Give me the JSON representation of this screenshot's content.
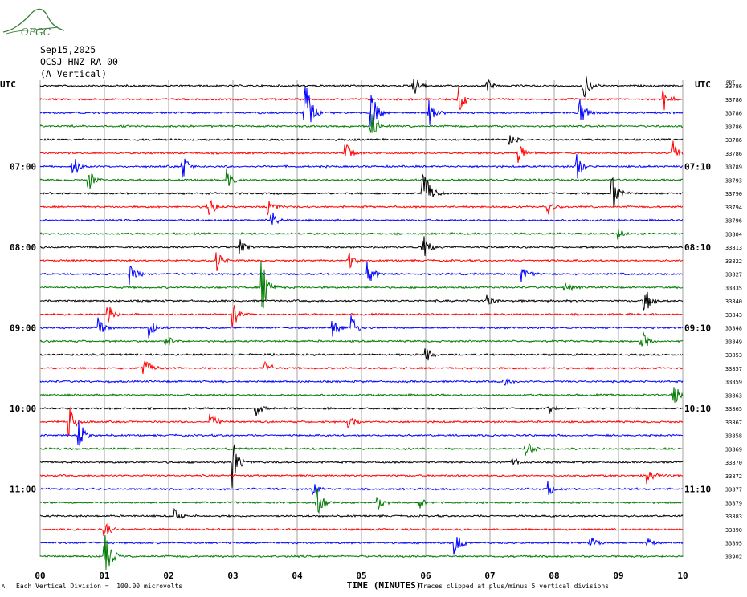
{
  "header": {
    "logo_text": "OFGC",
    "date": "Sep15,2025",
    "station": "OCSJ HNZ RA 00",
    "component": "(A Vertical)"
  },
  "labels": {
    "utc_left": "UTC",
    "utc_right": "UTC",
    "xlabel": "TIME (MINUTES)",
    "right_header": "PDT",
    "scale_note": "Each Vertical Division =  100.00 microvolts",
    "clip_note": "Traces clipped at plus/minus 5 vertical divisions",
    "corner_mark": "A"
  },
  "colors": {
    "trace_cycle": [
      "#000000",
      "#ff0000",
      "#0000ff",
      "#007a00"
    ],
    "grid": "#8c8c8c",
    "logo": "#3a7f3a"
  },
  "chart_data": {
    "type": "line",
    "xlim": [
      0,
      10
    ],
    "x_ticks": [
      "00",
      "01",
      "02",
      "03",
      "04",
      "05",
      "06",
      "07",
      "08",
      "09",
      "10"
    ],
    "left_time_labels": [
      {
        "row": 6,
        "label": "07:00"
      },
      {
        "row": 12,
        "label": "08:00"
      },
      {
        "row": 18,
        "label": "09:00"
      },
      {
        "row": 24,
        "label": "10:00"
      },
      {
        "row": 30,
        "label": "11:00"
      }
    ],
    "right_time_labels": [
      {
        "row": 6,
        "label": "07:10"
      },
      {
        "row": 12,
        "label": "08:10"
      },
      {
        "row": 18,
        "label": "09:10"
      },
      {
        "row": 24,
        "label": "10:10"
      },
      {
        "row": 30,
        "label": "11:10"
      }
    ],
    "right_values": [
      "33786",
      "33786",
      "33786",
      "33786",
      "33786",
      "33786",
      "33789",
      "33793",
      "33790",
      "33794",
      "33796",
      "33804",
      "33813",
      "33822",
      "33827",
      "33835",
      "33840",
      "33843",
      "33848",
      "33849",
      "33853",
      "33857",
      "33859",
      "33863",
      "33865",
      "33867",
      "33858",
      "33869",
      "33870",
      "33872",
      "33877",
      "33879",
      "33883",
      "33890",
      "33895",
      "33902"
    ],
    "events": [
      {
        "row": 0,
        "x": 5.8,
        "amp": 0.8
      },
      {
        "row": 0,
        "x": 8.45,
        "amp": 1.0
      },
      {
        "row": 0,
        "x": 6.95,
        "amp": 0.5
      },
      {
        "row": 1,
        "x": 6.5,
        "amp": 1.1
      },
      {
        "row": 1,
        "x": 9.7,
        "amp": 0.9
      },
      {
        "row": 2,
        "x": 4.1,
        "amp": 3.2
      },
      {
        "row": 2,
        "x": 5.15,
        "amp": 1.4
      },
      {
        "row": 2,
        "x": 6.05,
        "amp": 0.9
      },
      {
        "row": 2,
        "x": 8.4,
        "amp": 0.9
      },
      {
        "row": 3,
        "x": 5.15,
        "amp": 1.0
      },
      {
        "row": 4,
        "x": 7.3,
        "amp": 0.4
      },
      {
        "row": 5,
        "x": 4.75,
        "amp": 0.7
      },
      {
        "row": 5,
        "x": 7.45,
        "amp": 0.7
      },
      {
        "row": 5,
        "x": 9.85,
        "amp": 0.8
      },
      {
        "row": 6,
        "x": 0.5,
        "amp": 0.9
      },
      {
        "row": 6,
        "x": 2.2,
        "amp": 0.9
      },
      {
        "row": 6,
        "x": 8.35,
        "amp": 1.0
      },
      {
        "row": 7,
        "x": 0.75,
        "amp": 0.8
      },
      {
        "row": 7,
        "x": 2.9,
        "amp": 0.7
      },
      {
        "row": 8,
        "x": 5.95,
        "amp": 2.0
      },
      {
        "row": 8,
        "x": 8.9,
        "amp": 1.2
      },
      {
        "row": 9,
        "x": 2.6,
        "amp": 1.0
      },
      {
        "row": 9,
        "x": 3.55,
        "amp": 0.6
      },
      {
        "row": 9,
        "x": 7.9,
        "amp": 0.7
      },
      {
        "row": 10,
        "x": 3.6,
        "amp": 0.6
      },
      {
        "row": 11,
        "x": 9.0,
        "amp": 0.4
      },
      {
        "row": 12,
        "x": 5.95,
        "amp": 1.0
      },
      {
        "row": 12,
        "x": 3.1,
        "amp": 0.6
      },
      {
        "row": 13,
        "x": 2.75,
        "amp": 0.7
      },
      {
        "row": 13,
        "x": 4.8,
        "amp": 0.7
      },
      {
        "row": 14,
        "x": 1.4,
        "amp": 0.7
      },
      {
        "row": 14,
        "x": 5.1,
        "amp": 0.8
      },
      {
        "row": 14,
        "x": 7.5,
        "amp": 0.5
      },
      {
        "row": 15,
        "x": 3.45,
        "amp": 1.7
      },
      {
        "row": 15,
        "x": 8.15,
        "amp": 0.6
      },
      {
        "row": 16,
        "x": 9.4,
        "amp": 1.0
      },
      {
        "row": 16,
        "x": 6.95,
        "amp": 0.4
      },
      {
        "row": 17,
        "x": 1.05,
        "amp": 0.8
      },
      {
        "row": 17,
        "x": 3.0,
        "amp": 0.8
      },
      {
        "row": 18,
        "x": 0.9,
        "amp": 0.7
      },
      {
        "row": 18,
        "x": 1.7,
        "amp": 0.7
      },
      {
        "row": 18,
        "x": 4.55,
        "amp": 0.8
      },
      {
        "row": 18,
        "x": 4.85,
        "amp": 0.8
      },
      {
        "row": 19,
        "x": 1.95,
        "amp": 0.6
      },
      {
        "row": 19,
        "x": 9.35,
        "amp": 0.8
      },
      {
        "row": 20,
        "x": 6.0,
        "amp": 0.5
      },
      {
        "row": 21,
        "x": 1.6,
        "amp": 0.9
      },
      {
        "row": 21,
        "x": 3.5,
        "amp": 0.6
      },
      {
        "row": 22,
        "x": 7.2,
        "amp": 0.4
      },
      {
        "row": 23,
        "x": 9.85,
        "amp": 0.9
      },
      {
        "row": 24,
        "x": 3.35,
        "amp": 0.6
      },
      {
        "row": 24,
        "x": 7.9,
        "amp": 0.5
      },
      {
        "row": 25,
        "x": 0.45,
        "amp": 1.0
      },
      {
        "row": 25,
        "x": 2.65,
        "amp": 0.7
      },
      {
        "row": 25,
        "x": 4.8,
        "amp": 0.5
      },
      {
        "row": 26,
        "x": 0.6,
        "amp": 1.0
      },
      {
        "row": 27,
        "x": 7.55,
        "amp": 0.8
      },
      {
        "row": 28,
        "x": 3.0,
        "amp": 1.5
      },
      {
        "row": 28,
        "x": 7.35,
        "amp": 0.4
      },
      {
        "row": 29,
        "x": 9.45,
        "amp": 0.6
      },
      {
        "row": 30,
        "x": 4.25,
        "amp": 0.5
      },
      {
        "row": 30,
        "x": 7.9,
        "amp": 0.5
      },
      {
        "row": 31,
        "x": 4.3,
        "amp": 1.0
      },
      {
        "row": 31,
        "x": 5.25,
        "amp": 0.5
      },
      {
        "row": 31,
        "x": 5.9,
        "amp": 0.5
      },
      {
        "row": 32,
        "x": 2.1,
        "amp": 0.5
      },
      {
        "row": 33,
        "x": 1.0,
        "amp": 0.6
      },
      {
        "row": 34,
        "x": 6.45,
        "amp": 1.0
      },
      {
        "row": 34,
        "x": 8.55,
        "amp": 0.6
      },
      {
        "row": 34,
        "x": 9.45,
        "amp": 0.4
      },
      {
        "row": 35,
        "x": 1.0,
        "amp": 1.8
      }
    ]
  }
}
